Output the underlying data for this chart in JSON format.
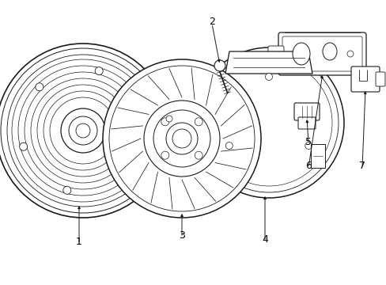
{
  "bg_color": "#ffffff",
  "line_color": "#1a1a1a",
  "label_color": "#000000",
  "figsize": [
    4.89,
    3.6
  ],
  "dpi": 100,
  "label_fontsize": 9
}
